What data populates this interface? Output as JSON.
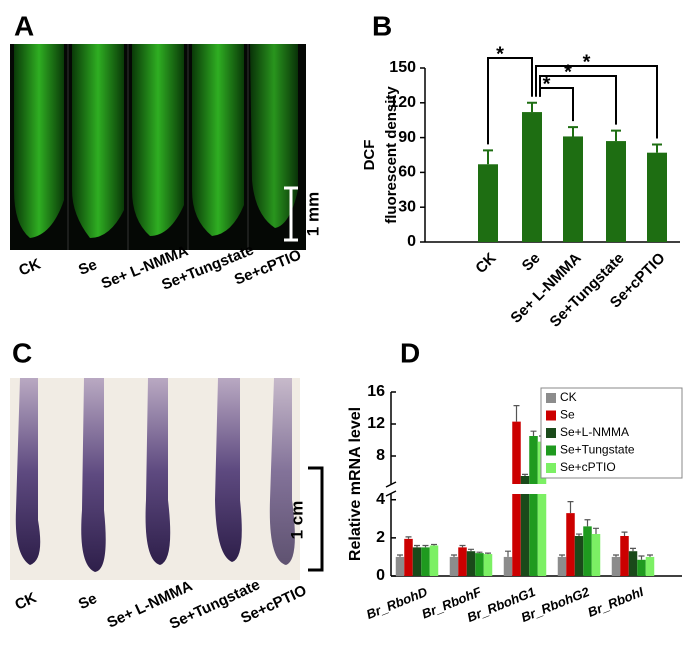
{
  "images": [
    {
      "letter": "A",
      "labels": [
        "CK",
        "Se",
        "Se+ L-NMMA",
        "Se+Tungstate",
        "Se+cPTIO"
      ],
      "scale_bar": "1 mm"
    },
    {
      "letter": "C",
      "labels": [
        "CK",
        "Se",
        "Se+ L-NMMA",
        "Se+Tungstate",
        "Se+cPTIO"
      ],
      "scale_bar": "1 cm"
    }
  ],
  "chart_data": [
    {
      "type": "bar",
      "letter": "B",
      "y_label": [
        "DCF",
        "fluorescent density"
      ],
      "categories": [
        "CK",
        "Se",
        "Se+ L-NMMA",
        "Se+Tungstate",
        "Se+cPTIO"
      ],
      "values": [
        67,
        112,
        91,
        87,
        77
      ],
      "errors": [
        12,
        8,
        8,
        9,
        7
      ],
      "color": "#1e6e12",
      "ylim": [
        0,
        150
      ],
      "yticks": [
        0,
        30,
        60,
        90,
        120,
        150
      ],
      "annotations": [
        "*",
        "*",
        "*",
        "*"
      ]
    },
    {
      "type": "grouped_bar",
      "letter": "D",
      "y_label": "Relative mRNA level",
      "categories": [
        "Br_RbohD",
        "Br_RbohF",
        "Br_RbohG1",
        "Br_RbohG2",
        "Br_RbohI"
      ],
      "series": [
        {
          "name": "CK",
          "color": "#8c8c8c",
          "values": [
            1.0,
            1.0,
            1.0,
            1.0,
            1.0
          ],
          "errors": [
            0.1,
            0.1,
            0.3,
            0.1,
            0.1
          ]
        },
        {
          "name": "Se",
          "color": "#cc0000",
          "values": [
            1.95,
            1.5,
            12.3,
            3.3,
            2.1
          ],
          "errors": [
            0.1,
            0.1,
            2.0,
            0.6,
            0.2
          ]
        },
        {
          "name": "Se+L-NMMA",
          "color": "#1a4a1a",
          "values": [
            1.5,
            1.3,
            5.5,
            2.1,
            1.3
          ],
          "errors": [
            0.1,
            0.1,
            0.2,
            0.1,
            0.15
          ]
        },
        {
          "name": "Se+Tungstate",
          "color": "#1f9a1f",
          "values": [
            1.5,
            1.2,
            10.5,
            2.6,
            0.85
          ],
          "errors": [
            0.1,
            0.05,
            0.6,
            0.35,
            0.2
          ]
        },
        {
          "name": "Se+cPTIO",
          "color": "#7cf064",
          "values": [
            1.6,
            1.15,
            9.8,
            2.2,
            1.0
          ],
          "errors": [
            0.05,
            0.05,
            0.7,
            0.3,
            0.1
          ]
        }
      ],
      "ylim_segments": [
        [
          0,
          4.3
        ],
        [
          4.5,
          16
        ]
      ],
      "yticks": [
        0,
        2,
        4,
        8,
        12,
        16
      ],
      "legend": "upper right"
    }
  ]
}
